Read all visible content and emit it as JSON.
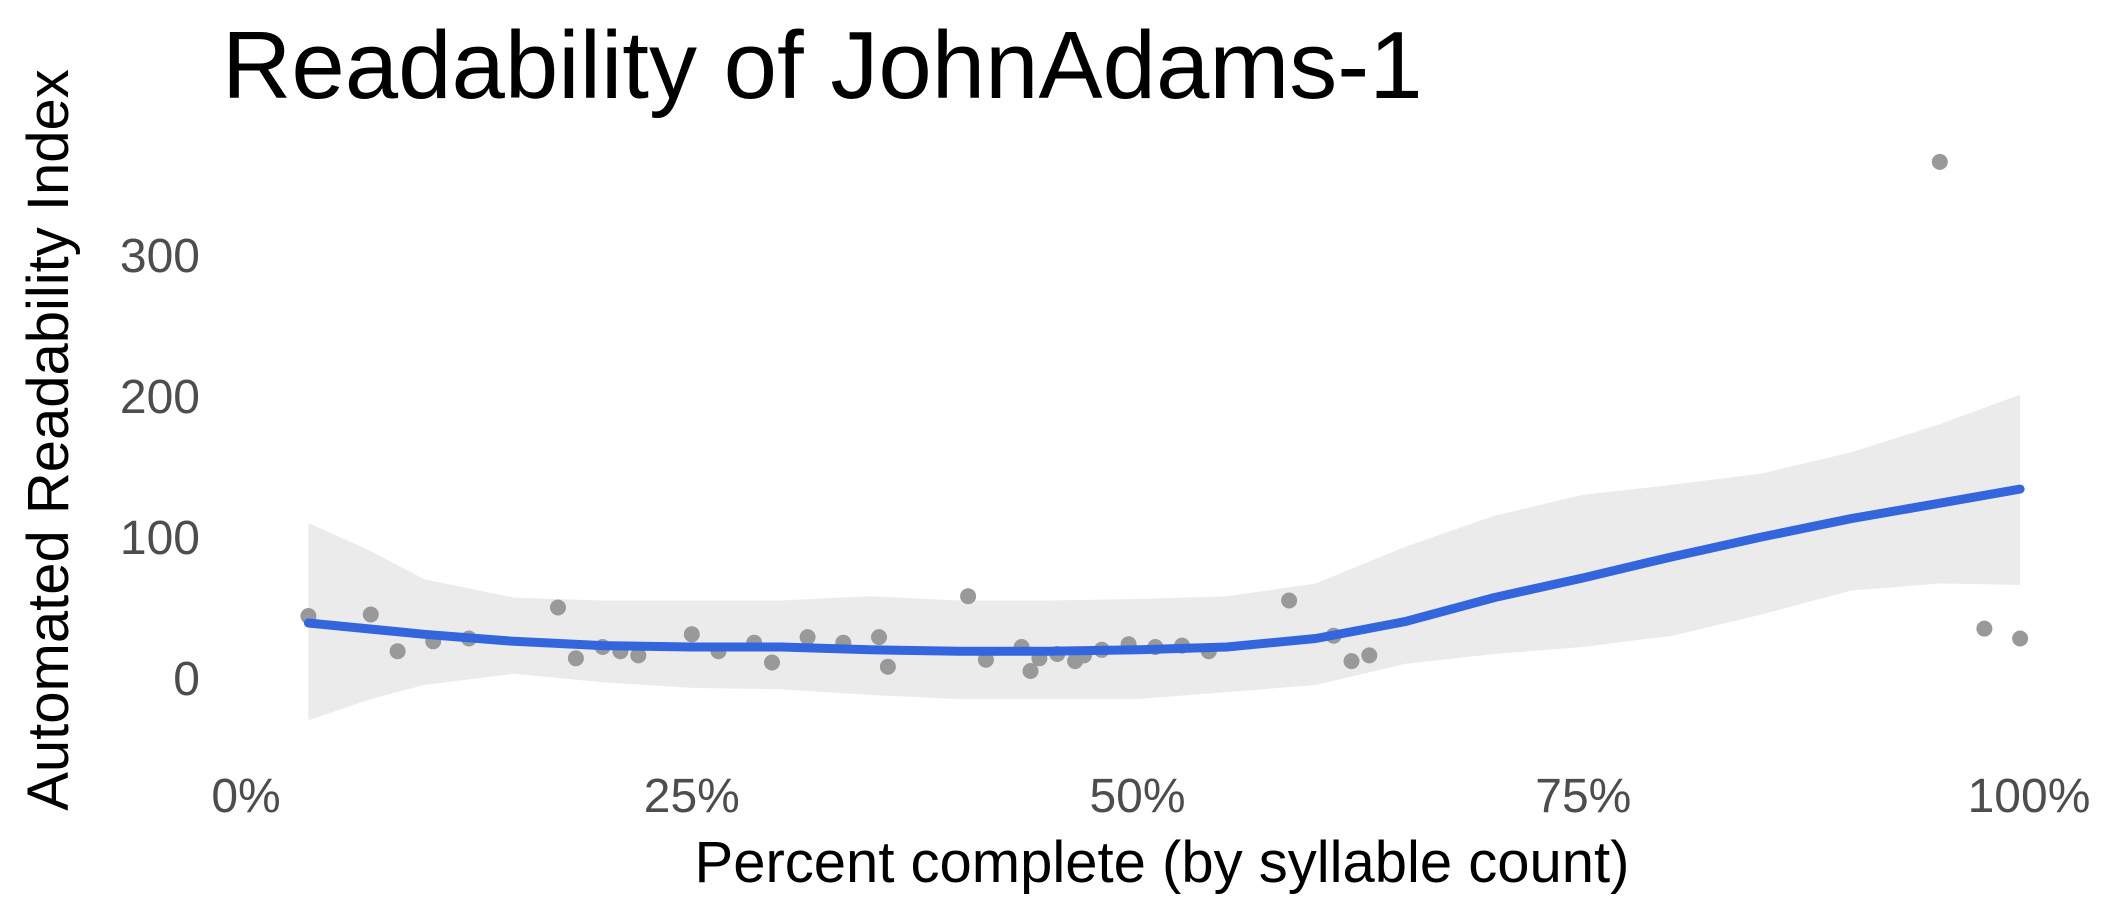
{
  "chart_data": {
    "type": "scatter",
    "title": "Readability of JohnAdams-1",
    "xlabel": "Percent complete (by syllable count)",
    "ylabel": "Automated Readability Index",
    "xlim": [
      0,
      100
    ],
    "ylim": [
      -50,
      375
    ],
    "x_ticks": [
      {
        "value": 0,
        "label": "0%"
      },
      {
        "value": 25,
        "label": "25%"
      },
      {
        "value": 50,
        "label": "50%"
      },
      {
        "value": 75,
        "label": "75%"
      },
      {
        "value": 100,
        "label": "100%"
      }
    ],
    "y_ticks": [
      {
        "value": 0,
        "label": "0"
      },
      {
        "value": 100,
        "label": "100"
      },
      {
        "value": 200,
        "label": "200"
      },
      {
        "value": 300,
        "label": "300"
      }
    ],
    "grid": false,
    "legend": "none",
    "colors": {
      "points": "#999999",
      "smooth_line": "#3366dd",
      "confidence_band": "#ebebeb"
    },
    "points": [
      {
        "x": 3.5,
        "y": 44
      },
      {
        "x": 7.0,
        "y": 45
      },
      {
        "x": 8.5,
        "y": 19
      },
      {
        "x": 10.5,
        "y": 26
      },
      {
        "x": 12.5,
        "y": 28
      },
      {
        "x": 17.5,
        "y": 50
      },
      {
        "x": 18.5,
        "y": 14
      },
      {
        "x": 20.0,
        "y": 22
      },
      {
        "x": 21.0,
        "y": 19
      },
      {
        "x": 22.0,
        "y": 16
      },
      {
        "x": 25.0,
        "y": 31
      },
      {
        "x": 26.5,
        "y": 19
      },
      {
        "x": 28.5,
        "y": 25
      },
      {
        "x": 29.5,
        "y": 11
      },
      {
        "x": 31.5,
        "y": 29
      },
      {
        "x": 33.5,
        "y": 25
      },
      {
        "x": 35.5,
        "y": 29
      },
      {
        "x": 36.0,
        "y": 8
      },
      {
        "x": 40.5,
        "y": 58
      },
      {
        "x": 41.5,
        "y": 13
      },
      {
        "x": 43.5,
        "y": 22
      },
      {
        "x": 44.0,
        "y": 5
      },
      {
        "x": 44.5,
        "y": 14
      },
      {
        "x": 45.5,
        "y": 17
      },
      {
        "x": 46.5,
        "y": 12
      },
      {
        "x": 47.0,
        "y": 16
      },
      {
        "x": 48.0,
        "y": 20
      },
      {
        "x": 49.5,
        "y": 24
      },
      {
        "x": 51.0,
        "y": 22
      },
      {
        "x": 52.5,
        "y": 23
      },
      {
        "x": 54.0,
        "y": 19
      },
      {
        "x": 58.5,
        "y": 55
      },
      {
        "x": 61.0,
        "y": 30
      },
      {
        "x": 62.0,
        "y": 12
      },
      {
        "x": 63.0,
        "y": 16
      },
      {
        "x": 95.0,
        "y": 366
      },
      {
        "x": 97.5,
        "y": 35
      },
      {
        "x": 99.5,
        "y": 28
      }
    ],
    "smooth_line": [
      {
        "x": 3.5,
        "y": 39
      },
      {
        "x": 10,
        "y": 31
      },
      {
        "x": 15,
        "y": 26
      },
      {
        "x": 20,
        "y": 23
      },
      {
        "x": 25,
        "y": 22
      },
      {
        "x": 30,
        "y": 22
      },
      {
        "x": 35,
        "y": 20
      },
      {
        "x": 40,
        "y": 19
      },
      {
        "x": 45,
        "y": 19
      },
      {
        "x": 50,
        "y": 20
      },
      {
        "x": 55,
        "y": 22
      },
      {
        "x": 60,
        "y": 28
      },
      {
        "x": 65,
        "y": 40
      },
      {
        "x": 70,
        "y": 57
      },
      {
        "x": 75,
        "y": 71
      },
      {
        "x": 80,
        "y": 86
      },
      {
        "x": 85,
        "y": 100
      },
      {
        "x": 90,
        "y": 113
      },
      {
        "x": 95,
        "y": 124
      },
      {
        "x": 99.5,
        "y": 134
      }
    ],
    "band_upper": [
      {
        "x": 3.5,
        "y": 110
      },
      {
        "x": 7,
        "y": 90
      },
      {
        "x": 10,
        "y": 70
      },
      {
        "x": 15,
        "y": 57
      },
      {
        "x": 20,
        "y": 55
      },
      {
        "x": 30,
        "y": 55
      },
      {
        "x": 35,
        "y": 58
      },
      {
        "x": 40,
        "y": 55
      },
      {
        "x": 45,
        "y": 55
      },
      {
        "x": 50,
        "y": 56
      },
      {
        "x": 55,
        "y": 58
      },
      {
        "x": 60,
        "y": 67
      },
      {
        "x": 65,
        "y": 93
      },
      {
        "x": 70,
        "y": 115
      },
      {
        "x": 75,
        "y": 130
      },
      {
        "x": 80,
        "y": 137
      },
      {
        "x": 85,
        "y": 145
      },
      {
        "x": 90,
        "y": 160
      },
      {
        "x": 95,
        "y": 180
      },
      {
        "x": 99.5,
        "y": 201
      }
    ],
    "band_lower": [
      {
        "x": 3.5,
        "y": -30
      },
      {
        "x": 7,
        "y": -15
      },
      {
        "x": 10,
        "y": -5
      },
      {
        "x": 15,
        "y": 3
      },
      {
        "x": 20,
        "y": -3
      },
      {
        "x": 25,
        "y": -7
      },
      {
        "x": 30,
        "y": -8
      },
      {
        "x": 35,
        "y": -12
      },
      {
        "x": 40,
        "y": -15
      },
      {
        "x": 45,
        "y": -15
      },
      {
        "x": 50,
        "y": -15
      },
      {
        "x": 55,
        "y": -10
      },
      {
        "x": 60,
        "y": -5
      },
      {
        "x": 65,
        "y": 10
      },
      {
        "x": 70,
        "y": 17
      },
      {
        "x": 75,
        "y": 22
      },
      {
        "x": 80,
        "y": 30
      },
      {
        "x": 85,
        "y": 45
      },
      {
        "x": 90,
        "y": 62
      },
      {
        "x": 95,
        "y": 67
      },
      {
        "x": 99.5,
        "y": 66
      }
    ]
  }
}
